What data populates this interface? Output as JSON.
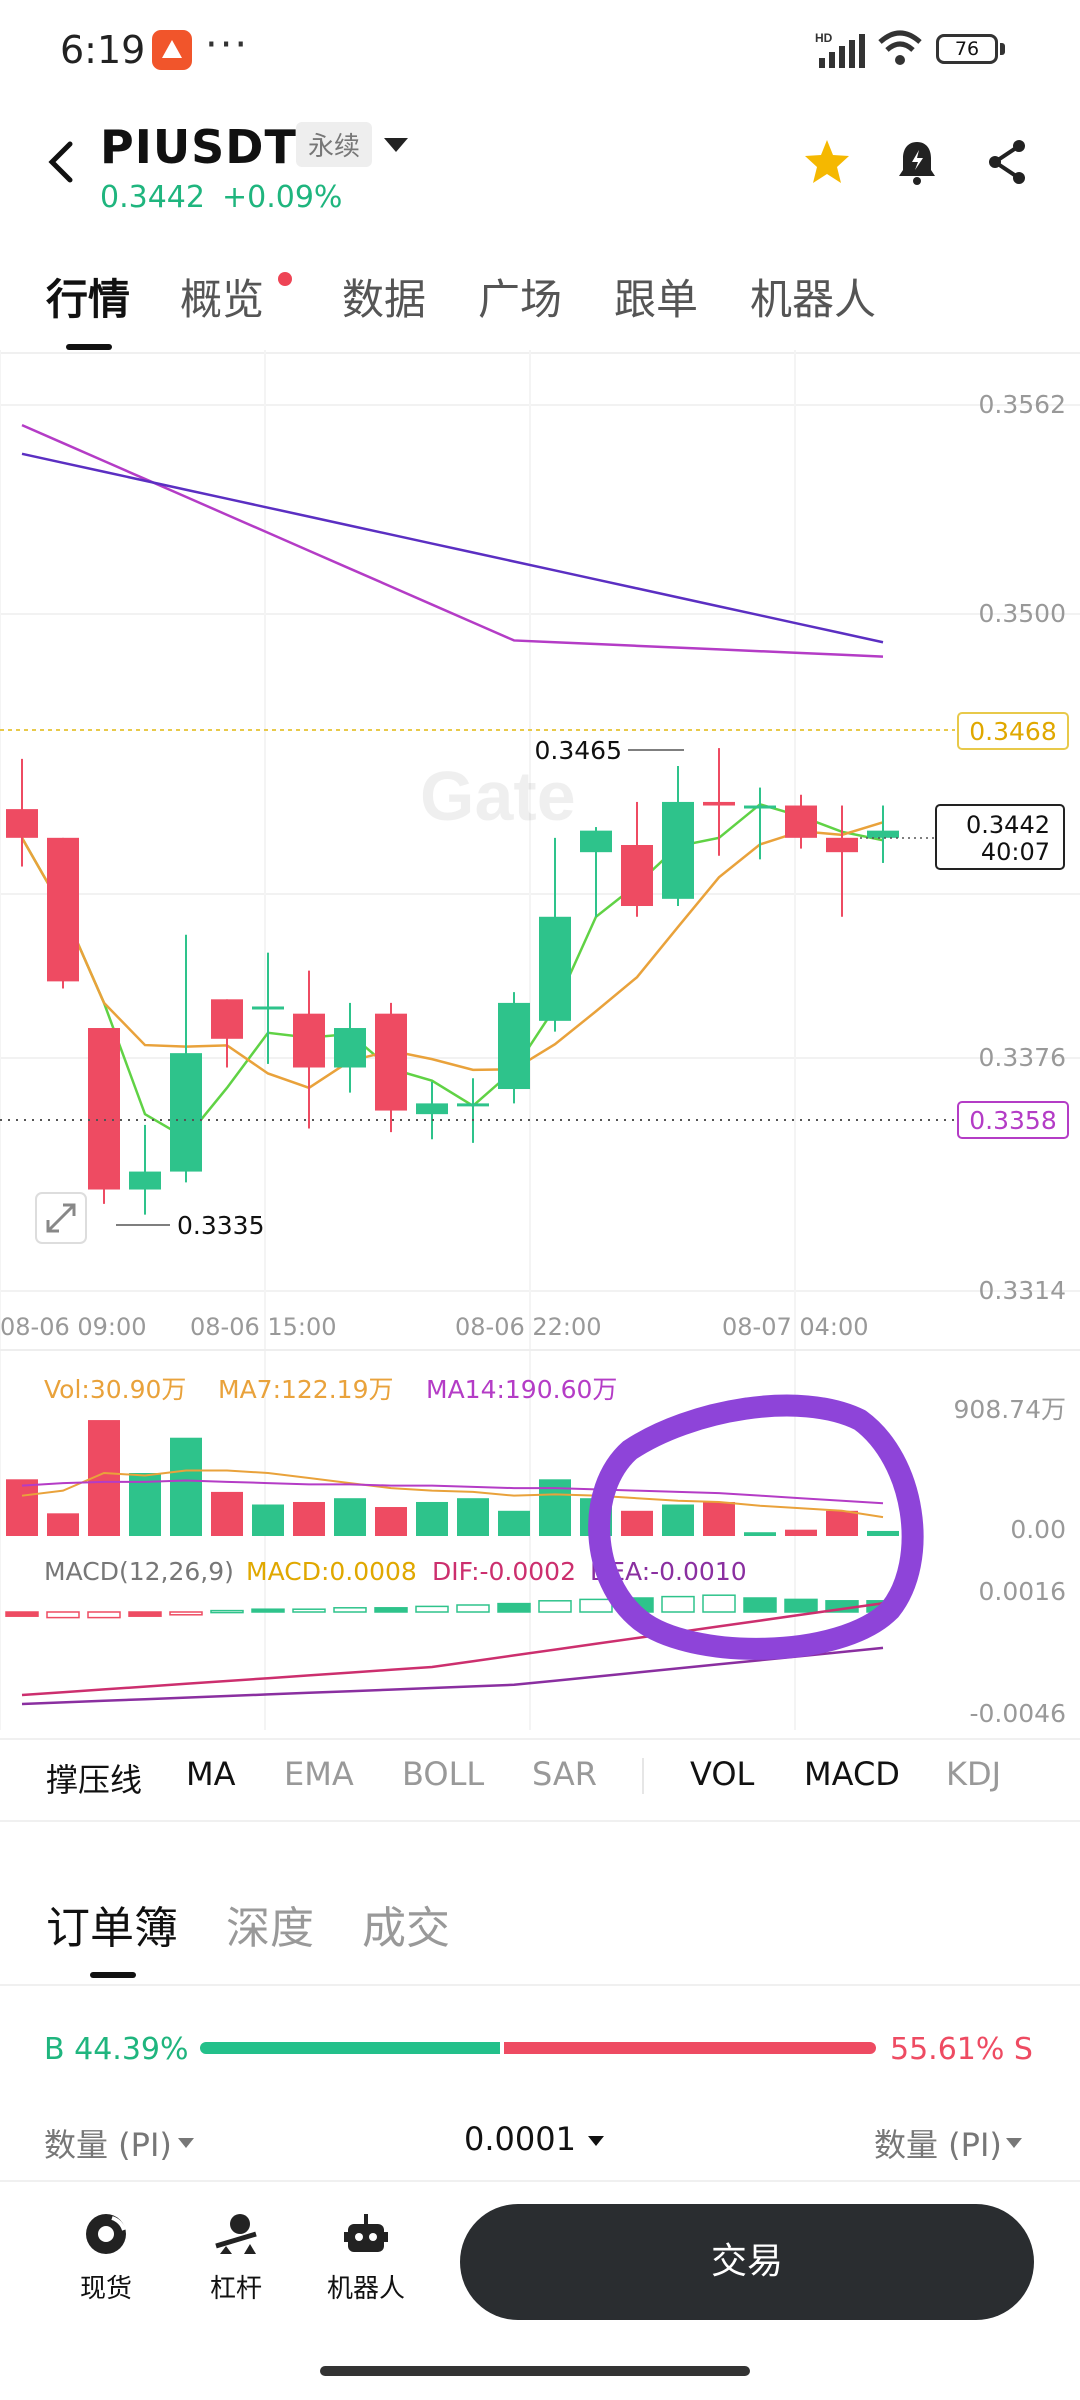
{
  "status_bar": {
    "time": "6:19",
    "overflow": "···",
    "network": "HD",
    "battery": "76"
  },
  "header": {
    "symbol": "PIUSDT",
    "contract_type": "永续",
    "last_price": "0.3442",
    "change": "+0.09%"
  },
  "tabs": [
    "行情",
    "概览",
    "数据",
    "广场",
    "跟单",
    "机器人"
  ],
  "chart": {
    "price_ticks": [
      "0.3562",
      "0.3500",
      "0.3376",
      "0.3314"
    ],
    "price_marker": "0.3468",
    "current_price": "0.3442",
    "countdown": "40:07",
    "low_marker": "0.3358",
    "high_annot": "0.3465",
    "low_annot": "0.3335",
    "watermark": "Gate",
    "time_ticks": [
      "08-06 09:00",
      "08-06 15:00",
      "08-06 22:00",
      "08-07 04:00"
    ],
    "vol_legend": {
      "vol": "Vol:30.90万",
      "ma7": "MA7:122.19万",
      "ma14": "MA14:190.60万"
    },
    "vol_ticks": [
      "908.74万",
      "0.00"
    ],
    "macd_legend": {
      "name": "MACD(12,26,9)",
      "macd": "MACD:0.0008",
      "dif": "DIF:-0.0002",
      "dea": "DEA:-0.0010"
    },
    "macd_ticks": [
      "0.0016",
      "-0.0046"
    ],
    "colors": {
      "up": "#2ec38b",
      "down": "#ee4b62",
      "ma_fast": "#60d245",
      "ma_mid": "#e9a23b",
      "ma_slow": "#b43cc6",
      "ma_long": "#5b2fc2",
      "annotation": "#8e44d9"
    }
  },
  "indicators": {
    "left": [
      "撑压线",
      "MA",
      "EMA",
      "BOLL",
      "SAR"
    ],
    "right": [
      "VOL",
      "MACD",
      "KDJ"
    ]
  },
  "orderbook": {
    "tabs": [
      "订单簿",
      "深度",
      "成交"
    ],
    "buy_ratio": "B 44.39%",
    "sell_ratio": "55.61% S",
    "buy_fraction": 0.4439,
    "qty_left": "数量 (PI)",
    "precision": "0.0001",
    "qty_right": "数量 (PI)"
  },
  "bottom_nav": {
    "items": [
      "现货",
      "杠杆",
      "机器人"
    ],
    "trade": "交易"
  },
  "chart_data": {
    "type": "candlestick",
    "timeframe_ticks": [
      "08-06 09:00",
      "08-06 15:00",
      "08-06 22:00",
      "08-07 04:00"
    ],
    "candles": [
      {
        "o": 0.3448,
        "h": 0.3462,
        "c": 0.344,
        "l": 0.3432
      },
      {
        "o": 0.344,
        "h": 0.344,
        "c": 0.34,
        "l": 0.3398
      },
      {
        "o": 0.3387,
        "h": 0.3387,
        "c": 0.3342,
        "l": 0.3338
      },
      {
        "o": 0.3342,
        "h": 0.336,
        "c": 0.3347,
        "l": 0.3335
      },
      {
        "o": 0.3347,
        "h": 0.3413,
        "c": 0.338,
        "l": 0.3344
      },
      {
        "o": 0.3395,
        "h": 0.3395,
        "c": 0.3384,
        "l": 0.3376
      },
      {
        "o": 0.3393,
        "h": 0.3408,
        "c": 0.3393,
        "l": 0.3377
      },
      {
        "o": 0.3391,
        "h": 0.3403,
        "c": 0.3376,
        "l": 0.3359
      },
      {
        "o": 0.3376,
        "h": 0.3394,
        "c": 0.3387,
        "l": 0.3369
      },
      {
        "o": 0.3391,
        "h": 0.3394,
        "c": 0.3364,
        "l": 0.3358
      },
      {
        "o": 0.3363,
        "h": 0.3372,
        "c": 0.3366,
        "l": 0.3356
      },
      {
        "o": 0.3366,
        "h": 0.3373,
        "c": 0.3366,
        "l": 0.3355
      },
      {
        "o": 0.337,
        "h": 0.3397,
        "c": 0.3394,
        "l": 0.3366
      },
      {
        "o": 0.3389,
        "h": 0.344,
        "c": 0.3418,
        "l": 0.3386
      },
      {
        "o": 0.3436,
        "h": 0.3443,
        "c": 0.3442,
        "l": 0.3418
      },
      {
        "o": 0.3438,
        "h": 0.345,
        "c": 0.3421,
        "l": 0.3418
      },
      {
        "o": 0.3423,
        "h": 0.346,
        "c": 0.345,
        "l": 0.3421
      },
      {
        "o": 0.345,
        "h": 0.3465,
        "c": 0.3449,
        "l": 0.3435
      },
      {
        "o": 0.3449,
        "h": 0.3454,
        "c": 0.3449,
        "l": 0.3434
      },
      {
        "o": 0.3449,
        "h": 0.3452,
        "c": 0.344,
        "l": 0.3437
      },
      {
        "o": 0.344,
        "h": 0.3449,
        "c": 0.3436,
        "l": 0.3418
      },
      {
        "o": 0.344,
        "h": 0.3449,
        "c": 0.3442,
        "l": 0.3433
      }
    ],
    "volume": [
      0.45,
      0.18,
      0.92,
      0.5,
      0.78,
      0.35,
      0.25,
      0.27,
      0.3,
      0.23,
      0.27,
      0.3,
      0.2,
      0.45,
      0.3,
      0.2,
      0.25,
      0.27,
      0.03,
      0.05,
      0.2,
      0.04
    ],
    "volume_ma7": [
      0.32,
      0.36,
      0.5,
      0.48,
      0.52,
      0.52,
      0.5,
      0.46,
      0.42,
      0.38,
      0.36,
      0.35,
      0.32,
      0.33,
      0.32,
      0.3,
      0.28,
      0.27,
      0.24,
      0.22,
      0.2,
      0.15
    ],
    "volume_ma14": [
      0.4,
      0.42,
      0.43,
      0.43,
      0.44,
      0.43,
      0.42,
      0.41,
      0.41,
      0.4,
      0.4,
      0.39,
      0.38,
      0.38,
      0.37,
      0.36,
      0.35,
      0.34,
      0.32,
      0.3,
      0.28,
      0.26
    ],
    "macd_hist": [
      -0.0003,
      -0.0004,
      -0.0004,
      -0.0003,
      -0.0002,
      0.0001,
      0.0002,
      0.0002,
      0.0003,
      0.0003,
      0.0004,
      0.0005,
      0.0006,
      0.0008,
      0.0009,
      0.001,
      0.0011,
      0.0012,
      0.001,
      0.0009,
      0.0008,
      0.0008
    ],
    "ylim": [
      0.3314,
      0.3562
    ]
  }
}
